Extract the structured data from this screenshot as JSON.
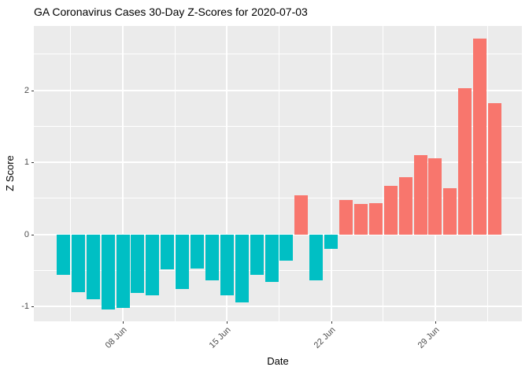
{
  "chart_data": {
    "type": "bar",
    "title": "GA Coronavirus Cases 30-Day Z-Scores for 2020-07-03",
    "xlabel": "Date",
    "ylabel": "Z Score",
    "x": [
      "2020-06-04",
      "2020-06-05",
      "2020-06-06",
      "2020-06-07",
      "2020-06-08",
      "2020-06-09",
      "2020-06-10",
      "2020-06-11",
      "2020-06-12",
      "2020-06-13",
      "2020-06-14",
      "2020-06-15",
      "2020-06-16",
      "2020-06-17",
      "2020-06-18",
      "2020-06-19",
      "2020-06-20",
      "2020-06-21",
      "2020-06-22",
      "2020-06-23",
      "2020-06-24",
      "2020-06-25",
      "2020-06-26",
      "2020-06-27",
      "2020-06-28",
      "2020-06-29",
      "2020-06-30",
      "2020-07-01",
      "2020-07-02",
      "2020-07-03"
    ],
    "values": [
      -0.56,
      -0.8,
      -0.9,
      -1.04,
      -1.02,
      -0.81,
      -0.85,
      -0.48,
      -0.76,
      -0.47,
      -0.64,
      -0.84,
      -0.94,
      -0.56,
      -0.66,
      -0.36,
      0.54,
      -0.64,
      -0.2,
      0.48,
      0.42,
      0.43,
      0.67,
      0.79,
      1.1,
      1.06,
      0.64,
      2.03,
      2.72,
      1.82
    ],
    "x_ticks": [
      {
        "label": "08 Jun",
        "day": 4
      },
      {
        "label": "15 Jun",
        "day": 11
      },
      {
        "label": "22 Jun",
        "day": 18
      },
      {
        "label": "29 Jun",
        "day": 25
      }
    ],
    "x_minor_days": [
      0.5,
      7.5,
      14.5,
      21.5,
      28.5
    ],
    "y_ticks": [
      {
        "label": "-1",
        "value": -1
      },
      {
        "label": "0",
        "value": 0
      },
      {
        "label": "1",
        "value": 1
      },
      {
        "label": "2",
        "value": 2
      }
    ],
    "y_minor": [
      -0.5,
      0.5,
      1.5,
      2.5
    ],
    "ylim": [
      -1.21,
      2.89
    ],
    "grid": true,
    "legend_position": "none",
    "colors": {
      "positive": "#F8766D",
      "negative": "#00BFC4",
      "panel_background": "#EBEBEB",
      "gridline": "#FFFFFF",
      "tick_text": "#4D4D4D",
      "title_text": "#000000"
    }
  }
}
